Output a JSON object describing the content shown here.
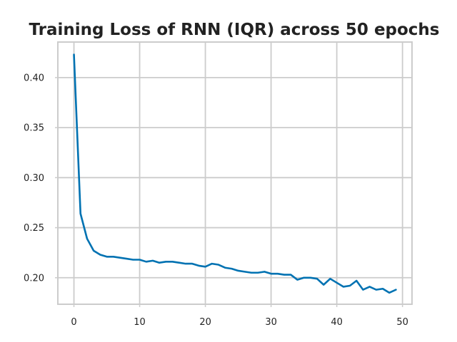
{
  "chart_data": {
    "type": "line",
    "title": "Training Loss of RNN (IQR) across 50 epochs",
    "xlabel": "",
    "ylabel": "",
    "xlim": [
      -2.45,
      51.45
    ],
    "ylim": [
      0.1735,
      0.4355
    ],
    "x_ticks": [
      0,
      10,
      20,
      30,
      40,
      50
    ],
    "y_ticks": [
      0.2,
      0.25,
      0.3,
      0.35,
      0.4
    ],
    "x_tick_labels": [
      "0",
      "10",
      "20",
      "30",
      "40",
      "50"
    ],
    "y_tick_labels": [
      "0.20",
      "0.25",
      "0.30",
      "0.35",
      "0.40"
    ],
    "grid": true,
    "line_color": "#0072b2",
    "series": [
      {
        "x": [
          0,
          1,
          2,
          3,
          4,
          5,
          6,
          7,
          8,
          9,
          10,
          11,
          12,
          13,
          14,
          15,
          16,
          17,
          18,
          19,
          20,
          21,
          22,
          23,
          24,
          25,
          26,
          27,
          28,
          29,
          30,
          31,
          32,
          33,
          34,
          35,
          36,
          37,
          38,
          39,
          40,
          41,
          42,
          43,
          44,
          45,
          46,
          47,
          48,
          49
        ],
        "values": [
          0.423,
          0.264,
          0.239,
          0.227,
          0.223,
          0.221,
          0.221,
          0.22,
          0.219,
          0.218,
          0.218,
          0.216,
          0.217,
          0.215,
          0.216,
          0.216,
          0.215,
          0.214,
          0.214,
          0.212,
          0.211,
          0.214,
          0.213,
          0.21,
          0.209,
          0.207,
          0.206,
          0.205,
          0.205,
          0.206,
          0.204,
          0.204,
          0.203,
          0.203,
          0.198,
          0.2,
          0.2,
          0.199,
          0.193,
          0.199,
          0.195,
          0.191,
          0.192,
          0.197,
          0.188,
          0.191,
          0.188,
          0.189,
          0.185,
          0.188
        ]
      }
    ]
  }
}
